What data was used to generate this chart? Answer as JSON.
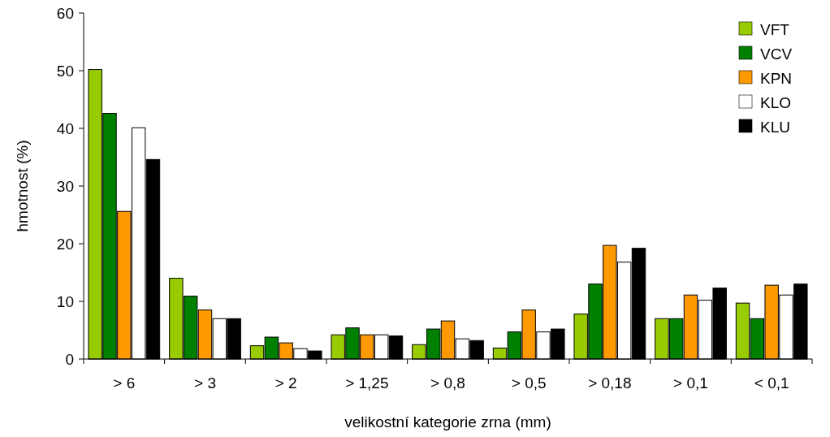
{
  "chart_data": {
    "type": "bar",
    "xlabel": "velikostní kategorie zrna (mm)",
    "ylabel": "hmotnost (%)",
    "categories": [
      "> 6",
      "> 3",
      "> 2",
      "> 1,25",
      "> 0,8",
      "> 0,5",
      "> 0,18",
      "> 0,1",
      "< 0,1"
    ],
    "series": [
      {
        "name": "VFT",
        "color": "#99cc00",
        "values": [
          50.2,
          14,
          2.3,
          4.2,
          2.5,
          1.9,
          7.8,
          7.0,
          9.7
        ]
      },
      {
        "name": "VCV",
        "color": "#008000",
        "values": [
          42.6,
          10.9,
          3.8,
          5.4,
          5.2,
          4.7,
          13.0,
          7.0,
          7.0
        ]
      },
      {
        "name": "KPN",
        "color": "#ff9900",
        "values": [
          25.6,
          8.5,
          2.8,
          4.2,
          6.6,
          8.5,
          19.7,
          11.1,
          12.8
        ]
      },
      {
        "name": "KLO",
        "color": "#ffffff",
        "values": [
          40.1,
          7.0,
          1.8,
          4.2,
          3.5,
          4.7,
          16.8,
          10.2,
          11.1
        ]
      },
      {
        "name": "KLU",
        "color": "#000000",
        "values": [
          34.6,
          7.0,
          1.4,
          4.0,
          3.2,
          5.2,
          19.2,
          12.3,
          13.0
        ]
      }
    ],
    "ylim": [
      0,
      60
    ],
    "yticks": [
      0,
      10,
      20,
      30,
      40,
      50,
      60
    ],
    "grid": false,
    "legend": "top right"
  }
}
